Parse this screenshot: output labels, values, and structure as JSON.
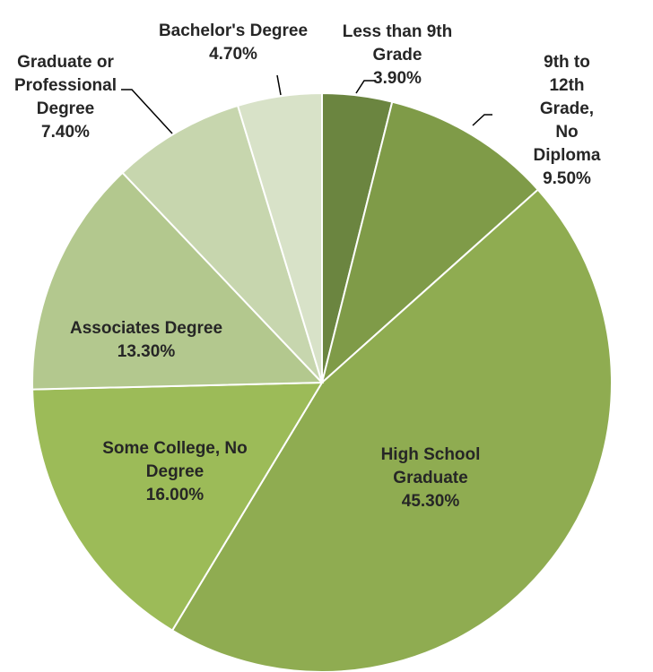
{
  "chart_data": {
    "type": "pie",
    "title": "",
    "start_angle_deg": 0,
    "direction": "clockwise",
    "slices": [
      {
        "label": "Less than 9th\nGrade",
        "value": 3.9,
        "value_label": "3.90%",
        "color": "#6b8540"
      },
      {
        "label": "9th to 12th Grade,\nNo Diploma",
        "value": 9.5,
        "value_label": "9.50%",
        "color": "#7f9b48"
      },
      {
        "label": "High School\nGraduate",
        "value": 45.3,
        "value_label": "45.30%",
        "color": "#8fac51"
      },
      {
        "label": "Some College, No\nDegree",
        "value": 16.0,
        "value_label": "16.00%",
        "color": "#9cbb58"
      },
      {
        "label": "Associates Degree",
        "value": 13.3,
        "value_label": "13.30%",
        "color": "#b3c88e"
      },
      {
        "label": "Graduate or\nProfessional\nDegree",
        "value": 7.4,
        "value_label": "7.40%",
        "color": "#c7d6ae"
      },
      {
        "label": "Bachelor's Degree",
        "value": 4.7,
        "value_label": "4.70%",
        "color": "#d8e2c8"
      }
    ]
  }
}
